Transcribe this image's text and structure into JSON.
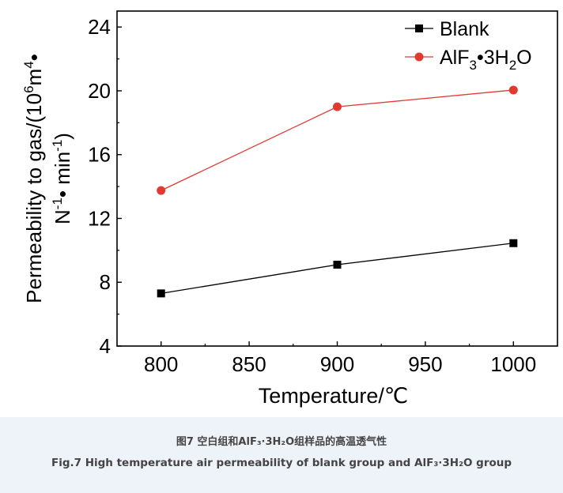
{
  "chart_data": {
    "type": "line",
    "x": [
      800,
      900,
      1000
    ],
    "xlim": [
      775,
      1025
    ],
    "ylim": [
      4,
      25
    ],
    "xticks": [
      800,
      850,
      900,
      950,
      1000
    ],
    "yticks": [
      4,
      8,
      12,
      16,
      20,
      24
    ],
    "xlabel": "Temperature/℃",
    "ylabel_line1": "Permeability to gas/(10",
    "ylabel_line1_sup": "6",
    "ylabel_line1_rest": "m",
    "ylabel_line1_sup2": "4",
    "ylabel_line1_end": "•",
    "ylabel_line2": "N",
    "ylabel_line2_sup": "-1",
    "ylabel_line2_mid": "• min",
    "ylabel_line2_sup2": "-1",
    "ylabel_line2_end": ")",
    "grid": false,
    "legend_position": "top-right",
    "series": [
      {
        "name": "Blank",
        "values": [
          7.3,
          9.1,
          10.45
        ],
        "color": "#000000",
        "marker": "square"
      },
      {
        "name": "AlF",
        "name_sub": "3",
        "name_mid": "•3H",
        "name_sub2": "2",
        "name_end": "O",
        "values": [
          13.75,
          19.0,
          20.05
        ],
        "color": "#e03a33",
        "marker": "circle"
      }
    ]
  },
  "caption": {
    "zh": "图7 空白组和AlF₃·3H₂O组样品的高温透气性",
    "en": "Fig.7 High temperature air permeability of blank group and AlF₃·3H₂O group"
  }
}
